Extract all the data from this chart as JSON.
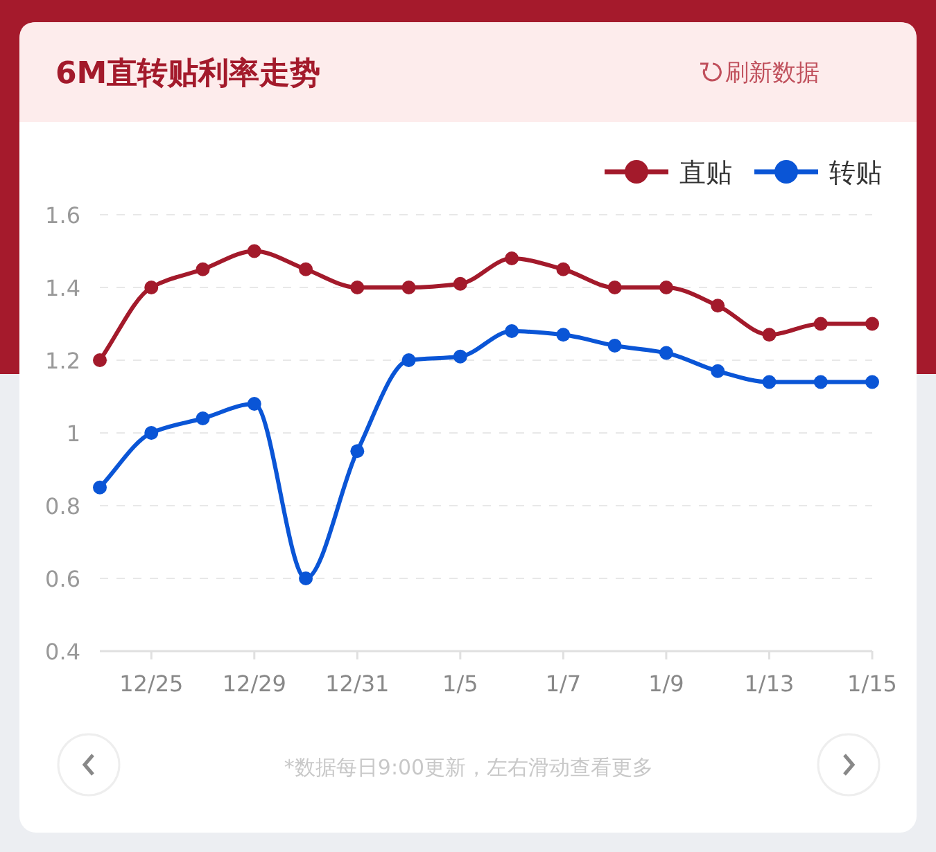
{
  "chart_data": {
    "type": "line",
    "title": "6M直转贴利率走势",
    "categories": [
      null,
      "12/25",
      null,
      "12/29",
      null,
      "12/31",
      null,
      "1/5",
      null,
      "1/7",
      null,
      "1/9",
      null,
      "1/13",
      null,
      "1/15"
    ],
    "series": [
      {
        "name": "直贴",
        "color": "#a31a2b",
        "values": [
          1.2,
          1.4,
          1.45,
          1.5,
          1.45,
          1.4,
          1.4,
          1.41,
          1.48,
          1.45,
          1.4,
          1.4,
          1.35,
          1.27,
          1.3,
          1.3
        ]
      },
      {
        "name": "转贴",
        "color": "#0a55d6",
        "values": [
          0.85,
          1.0,
          1.04,
          1.08,
          0.6,
          0.95,
          1.2,
          1.21,
          1.28,
          1.27,
          1.24,
          1.22,
          1.17,
          1.14,
          1.14,
          1.14
        ]
      }
    ],
    "ylim": [
      0.4,
      1.6
    ],
    "yticks": [
      0.4,
      0.6,
      0.8,
      1,
      1.2,
      1.4,
      1.6
    ],
    "grid": "y",
    "legend": "top right",
    "marker": "circle",
    "line_style": "solid",
    "annotations": [
      "刷新数据",
      "*数据每日9:00更新，左右滑动查看更多"
    ]
  }
}
